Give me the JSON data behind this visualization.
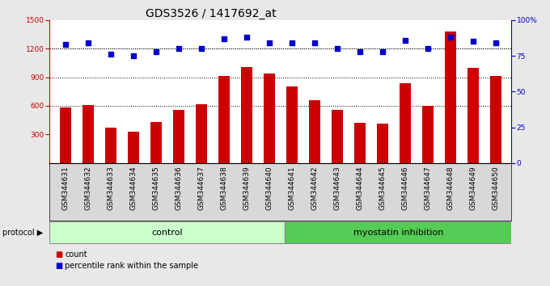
{
  "title": "GDS3526 / 1417692_at",
  "samples": [
    "GSM344631",
    "GSM344632",
    "GSM344633",
    "GSM344634",
    "GSM344635",
    "GSM344636",
    "GSM344637",
    "GSM344638",
    "GSM344639",
    "GSM344640",
    "GSM344641",
    "GSM344642",
    "GSM344643",
    "GSM344644",
    "GSM344645",
    "GSM344646",
    "GSM344647",
    "GSM344648",
    "GSM344649",
    "GSM344650"
  ],
  "bar_values": [
    580,
    610,
    370,
    330,
    430,
    555,
    615,
    910,
    1010,
    940,
    800,
    660,
    555,
    420,
    410,
    840,
    600,
    1380,
    1000,
    910
  ],
  "dot_values": [
    83,
    84,
    76,
    75,
    78,
    80,
    80,
    87,
    88,
    84,
    84,
    84,
    80,
    78,
    78,
    86,
    80,
    88,
    85,
    84
  ],
  "bar_color": "#cc0000",
  "dot_color": "#0000cc",
  "ylim_left": [
    0,
    1500
  ],
  "ylim_right": [
    0,
    100
  ],
  "yticks_left": [
    300,
    600,
    900,
    1200,
    1500
  ],
  "yticks_right": [
    0,
    25,
    50,
    75,
    100
  ],
  "grid_values": [
    600,
    900,
    1200
  ],
  "control_count": 10,
  "control_label": "control",
  "treatment_label": "myostatin inhibition",
  "control_color": "#ccffcc",
  "treatment_color": "#55cc55",
  "protocol_label": "protocol",
  "legend_count_label": "count",
  "legend_pct_label": "percentile rank within the sample",
  "bg_color": "#e8e8e8",
  "plot_bg_color": "#ffffff",
  "title_fontsize": 10,
  "tick_fontsize": 6.5,
  "label_fontsize": 7.5
}
